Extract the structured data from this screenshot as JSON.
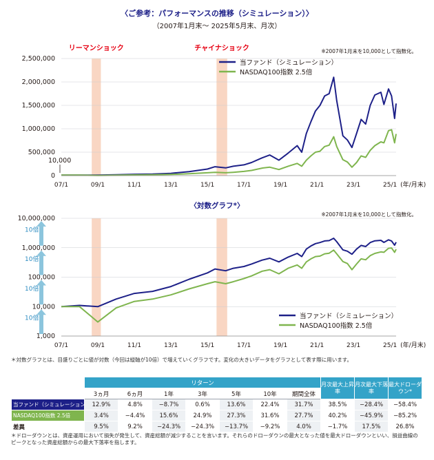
{
  "header": {
    "title": "〈ご参考：パフォーマンスの推移（シミュレーション）〉",
    "subtitle": "（2007年1月末～ 2025年5月末、月次）"
  },
  "chart_data": [
    {
      "type": "line",
      "x_ticks": [
        "07/1",
        "09/1",
        "11/1",
        "13/1",
        "15/1",
        "17/1",
        "19/1",
        "21/1",
        "23/1",
        "25/1"
      ],
      "x_unit": "(年/月末)",
      "ylim": [
        0,
        2500000
      ],
      "y_ticks": [
        "0",
        "500,000",
        "1,000,000",
        "1,500,000",
        "2,000,000",
        "2,500,000"
      ],
      "note": "※2007年1月末を10,000として指数化。",
      "start_label": "10,000",
      "events": [
        {
          "label": "リーマンショック",
          "start": "2008-09",
          "end": "2009-03"
        },
        {
          "label": "チャイナショック",
          "start": "2015-07",
          "end": "2016-02"
        }
      ],
      "series": [
        {
          "name": "当ファンド（シミュレーション）",
          "color": "#1d2088",
          "points": [
            [
              "2007-01",
              10000
            ],
            [
              "2008-01",
              11000
            ],
            [
              "2009-01",
              10000
            ],
            [
              "2010-01",
              18000
            ],
            [
              "2011-01",
              28000
            ],
            [
              "2012-01",
              33000
            ],
            [
              "2013-01",
              48000
            ],
            [
              "2014-01",
              85000
            ],
            [
              "2015-01",
              140000
            ],
            [
              "2015-06",
              190000
            ],
            [
              "2016-01",
              165000
            ],
            [
              "2016-06",
              200000
            ],
            [
              "2017-01",
              230000
            ],
            [
              "2017-06",
              280000
            ],
            [
              "2018-01",
              380000
            ],
            [
              "2018-06",
              440000
            ],
            [
              "2018-12",
              330000
            ],
            [
              "2019-06",
              480000
            ],
            [
              "2019-12",
              640000
            ],
            [
              "2020-03",
              500000
            ],
            [
              "2020-06",
              900000
            ],
            [
              "2020-09",
              1150000
            ],
            [
              "2020-12",
              1380000
            ],
            [
              "2021-03",
              1500000
            ],
            [
              "2021-06",
              1700000
            ],
            [
              "2021-09",
              1750000
            ],
            [
              "2021-12",
              2100000
            ],
            [
              "2022-02",
              1600000
            ],
            [
              "2022-06",
              850000
            ],
            [
              "2022-09",
              760000
            ],
            [
              "2022-12",
              600000
            ],
            [
              "2023-03",
              900000
            ],
            [
              "2023-06",
              1200000
            ],
            [
              "2023-09",
              1100000
            ],
            [
              "2023-12",
              1500000
            ],
            [
              "2024-03",
              1720000
            ],
            [
              "2024-07",
              1780000
            ],
            [
              "2024-09",
              1520000
            ],
            [
              "2024-12",
              1850000
            ],
            [
              "2025-02",
              1700000
            ],
            [
              "2025-04",
              1220000
            ],
            [
              "2025-05",
              1540000
            ]
          ]
        },
        {
          "name": "NASDAQ100指数 2.5倍",
          "color": "#7fb54e",
          "points": [
            [
              "2007-01",
              10000
            ],
            [
              "2008-01",
              10000
            ],
            [
              "2009-01",
              3000
            ],
            [
              "2010-01",
              9000
            ],
            [
              "2011-01",
              15000
            ],
            [
              "2012-01",
              18000
            ],
            [
              "2013-01",
              25000
            ],
            [
              "2014-01",
              40000
            ],
            [
              "2015-01",
              60000
            ],
            [
              "2015-06",
              70000
            ],
            [
              "2016-01",
              60000
            ],
            [
              "2016-06",
              70000
            ],
            [
              "2017-01",
              90000
            ],
            [
              "2017-06",
              110000
            ],
            [
              "2018-01",
              160000
            ],
            [
              "2018-06",
              180000
            ],
            [
              "2018-12",
              130000
            ],
            [
              "2019-06",
              200000
            ],
            [
              "2019-12",
              260000
            ],
            [
              "2020-03",
              200000
            ],
            [
              "2020-06",
              330000
            ],
            [
              "2020-09",
              420000
            ],
            [
              "2020-12",
              500000
            ],
            [
              "2021-03",
              520000
            ],
            [
              "2021-06",
              620000
            ],
            [
              "2021-09",
              650000
            ],
            [
              "2021-12",
              830000
            ],
            [
              "2022-02",
              620000
            ],
            [
              "2022-06",
              340000
            ],
            [
              "2022-09",
              290000
            ],
            [
              "2022-12",
              180000
            ],
            [
              "2023-03",
              280000
            ],
            [
              "2023-06",
              420000
            ],
            [
              "2023-09",
              390000
            ],
            [
              "2023-12",
              540000
            ],
            [
              "2024-03",
              640000
            ],
            [
              "2024-07",
              720000
            ],
            [
              "2024-09",
              700000
            ],
            [
              "2024-12",
              960000
            ],
            [
              "2025-02",
              980000
            ],
            [
              "2025-04",
              700000
            ],
            [
              "2025-05",
              890000
            ]
          ]
        }
      ]
    },
    {
      "type": "line",
      "title": "〈対数グラフ*〉",
      "scale": "log",
      "x_ticks": [
        "07/1",
        "09/1",
        "11/1",
        "13/1",
        "15/1",
        "17/1",
        "19/1",
        "21/1",
        "23/1",
        "25/1"
      ],
      "x_unit": "(年/月末)",
      "ylim": [
        1000,
        10000000
      ],
      "y_ticks": [
        "1,000",
        "10,000",
        "100,000",
        "1,000,000",
        "10,000,000"
      ],
      "arrow_label": "10倍",
      "note": "※2007年1月末を10,000として指数化。",
      "series_ref": "same as chart 1"
    }
  ],
  "legend": {
    "fund": "当ファンド（シミュレーション）",
    "nasdaq": "NASDAQ100指数 2.5倍"
  },
  "notes": {
    "log": "＊対数グラフとは、目盛りごとに値が対数（今回は縦軸が10倍）で増えていくグラフです。変化の大きいデータをグラフとして表す際に用います。",
    "drawdown": "＊ドローダウンとは、資産運用において損失が発生して、資産総額が減少することを言います。それらのドローダウンの最大となった値を最大ドローダウンといい、損益曲線のピークとなった資産総額からの最大下落率を指します。"
  },
  "table": {
    "group_header": "リターン",
    "col_headers": [
      "3ヵ月",
      "6ヵ月",
      "1年",
      "3年",
      "5年",
      "10年",
      "期間全体"
    ],
    "extra_headers": [
      "月次最大上昇率",
      "月次最大下落率",
      "最大ドローダウン*"
    ],
    "rows": [
      {
        "label": "当ファンド（シミュレーション）",
        "values": [
          "12.9%",
          "4.8%",
          "−8.7%",
          "0.6%",
          "13.6%",
          "22.4%",
          "31.7%",
          "38.5%",
          "−28.4%",
          "−58.4%"
        ]
      },
      {
        "label": "NASDAQ100指数 2.5倍",
        "values": [
          "3.4%",
          "−4.4%",
          "15.6%",
          "24.9%",
          "27.3%",
          "31.6%",
          "27.7%",
          "40.2%",
          "−45.9%",
          "−85.2%"
        ]
      },
      {
        "label": "差異",
        "values": [
          "9.5%",
          "9.2%",
          "−24.3%",
          "−24.3%",
          "−13.7%",
          "−9.2%",
          "4.0%",
          "−1.7%",
          "17.5%",
          "26.8%"
        ]
      }
    ]
  }
}
